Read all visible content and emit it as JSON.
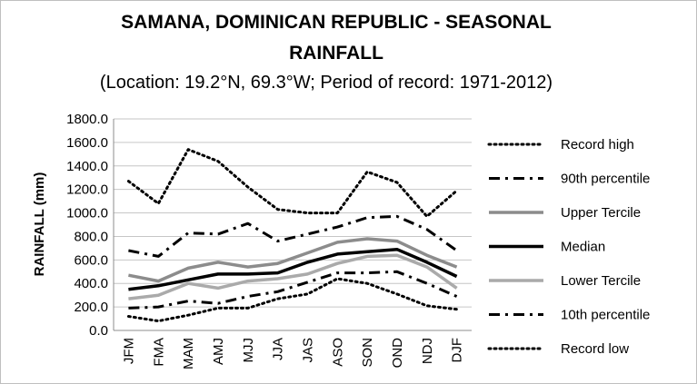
{
  "chart_data": {
    "type": "line",
    "title_line1": "SAMANA, DOMINICAN REPUBLIC - SEASONAL",
    "title_line2": "RAINFALL",
    "subtitle": "(Location: 19.2°N, 69.3°W; Period of record: 1971-2012)",
    "ylabel": "RAINFALL (mm)",
    "xlabel": "",
    "ylim": [
      0,
      1800
    ],
    "yticks": [
      "1800.0",
      "1600.0",
      "1400.0",
      "1200.0",
      "1000.0",
      "800.0",
      "600.0",
      "400.0",
      "200.0",
      "0.0"
    ],
    "yticks_values": [
      1800,
      1600,
      1400,
      1200,
      1000,
      800,
      600,
      400,
      200,
      0
    ],
    "categories": [
      "JFM",
      "FMA",
      "MAM",
      "AMJ",
      "MJJ",
      "JJA",
      "JAS",
      "ASO",
      "SON",
      "OND",
      "NDJ",
      "DJF"
    ],
    "grid": "horizontal",
    "legend_position": "right",
    "series": [
      {
        "name": "Record high",
        "color": "#000000",
        "style": "dotted",
        "values": [
          1270,
          1080,
          1540,
          1440,
          1220,
          1030,
          1000,
          1000,
          1350,
          1260,
          970,
          1190
        ]
      },
      {
        "name": "90th percentile",
        "color": "#000000",
        "style": "dashdot",
        "values": [
          680,
          630,
          830,
          820,
          910,
          760,
          820,
          880,
          960,
          970,
          860,
          680
        ]
      },
      {
        "name": "Upper Tercile",
        "color": "#8c8c8c",
        "style": "solid",
        "values": [
          470,
          420,
          530,
          580,
          540,
          570,
          660,
          750,
          780,
          760,
          640,
          540
        ]
      },
      {
        "name": "Median",
        "color": "#000000",
        "style": "solid",
        "values": [
          350,
          380,
          430,
          480,
          480,
          490,
          580,
          650,
          670,
          690,
          580,
          460
        ]
      },
      {
        "name": "Lower Tercile",
        "color": "#aaaaaa",
        "style": "solid",
        "values": [
          270,
          300,
          400,
          360,
          420,
          440,
          480,
          570,
          630,
          640,
          540,
          360
        ]
      },
      {
        "name": "10th percentile",
        "color": "#000000",
        "style": "dashdot",
        "values": [
          190,
          200,
          250,
          230,
          290,
          330,
          410,
          490,
          490,
          500,
          400,
          290
        ]
      },
      {
        "name": "Record low",
        "color": "#000000",
        "style": "dotted",
        "values": [
          120,
          80,
          130,
          190,
          190,
          270,
          310,
          440,
          400,
          310,
          210,
          180
        ]
      }
    ]
  }
}
